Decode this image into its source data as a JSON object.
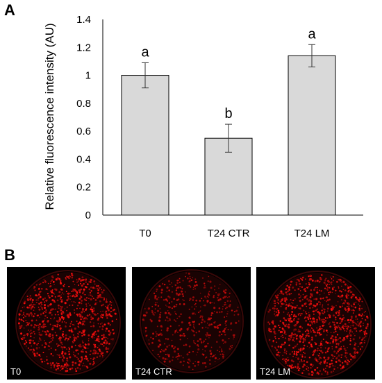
{
  "panels": {
    "a_label": "A",
    "b_label": "B"
  },
  "chart_data": {
    "type": "bar",
    "title": "",
    "xlabel": "",
    "ylabel": "Relative fluorescence intensity (AU)",
    "categories": [
      "T0",
      "T24 CTR",
      "T24 LM"
    ],
    "values": [
      1.0,
      0.55,
      1.14
    ],
    "error": [
      0.09,
      0.1,
      0.08
    ],
    "significance": [
      "a",
      "b",
      "a"
    ],
    "ylim": [
      0,
      1.4
    ],
    "yticks": [
      0,
      0.2,
      0.4,
      0.6,
      0.8,
      1,
      1.2,
      1.4
    ],
    "ytick_labels": [
      "0",
      "0.2",
      "0.4",
      "0.6",
      "0.8",
      "1",
      "1.2",
      "1.4"
    ],
    "grid": false,
    "bar_color": "#d9d9d9",
    "bar_edge_color": "#000000"
  },
  "micrographs": [
    {
      "label": "T0",
      "intensity": 1.0
    },
    {
      "label": "T24 CTR",
      "intensity": 0.55
    },
    {
      "label": "T24 LM",
      "intensity": 1.14
    }
  ]
}
